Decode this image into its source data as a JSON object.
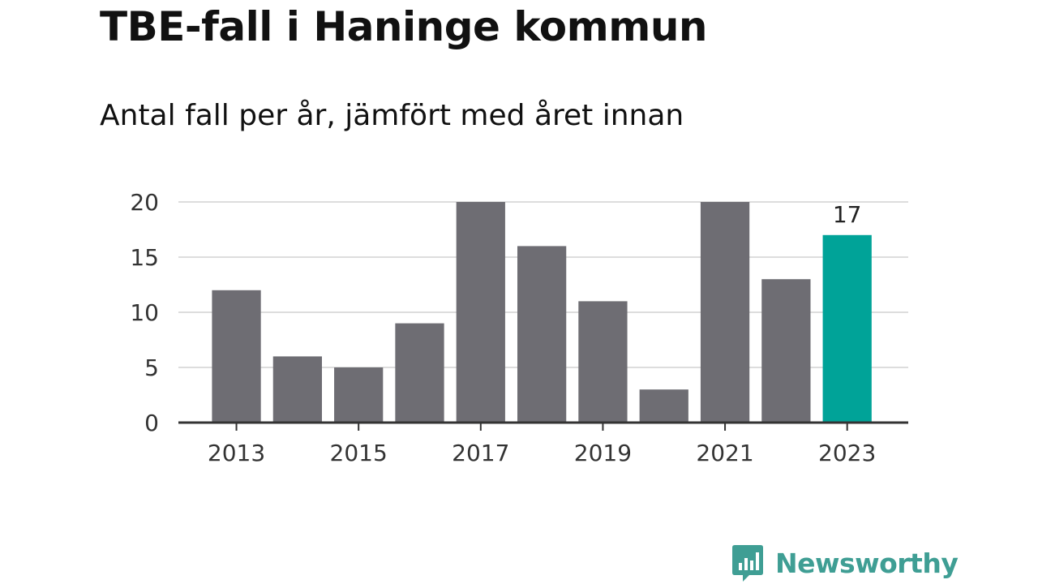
{
  "title": "TBE-fall i Haninge kommun",
  "subtitle": "Antal fall per år, jämfört med året innan",
  "brand": {
    "name": "Newsworthy",
    "icon": "newsworthy-logo-icon",
    "color": "#3f9e94"
  },
  "colors": {
    "bar": "#6e6d73",
    "highlight": "#00a398",
    "grid": "#dddddd",
    "axis": "#333333"
  },
  "chart_data": {
    "type": "bar",
    "categories": [
      "2013",
      "2014",
      "2015",
      "2016",
      "2017",
      "2018",
      "2019",
      "2020",
      "2021",
      "2022",
      "2023"
    ],
    "values": [
      12,
      6,
      5,
      9,
      20,
      16,
      11,
      3,
      20,
      13,
      17
    ],
    "highlight_index": 10,
    "data_labels": [
      {
        "index": 10,
        "text": "17"
      }
    ],
    "x_tick_labels": [
      "2013",
      "2015",
      "2017",
      "2019",
      "2021",
      "2023"
    ],
    "y_ticks": [
      0,
      5,
      10,
      15,
      20
    ],
    "ylim": [
      0,
      20
    ],
    "grid": true,
    "xlabel": "",
    "ylabel": ""
  }
}
